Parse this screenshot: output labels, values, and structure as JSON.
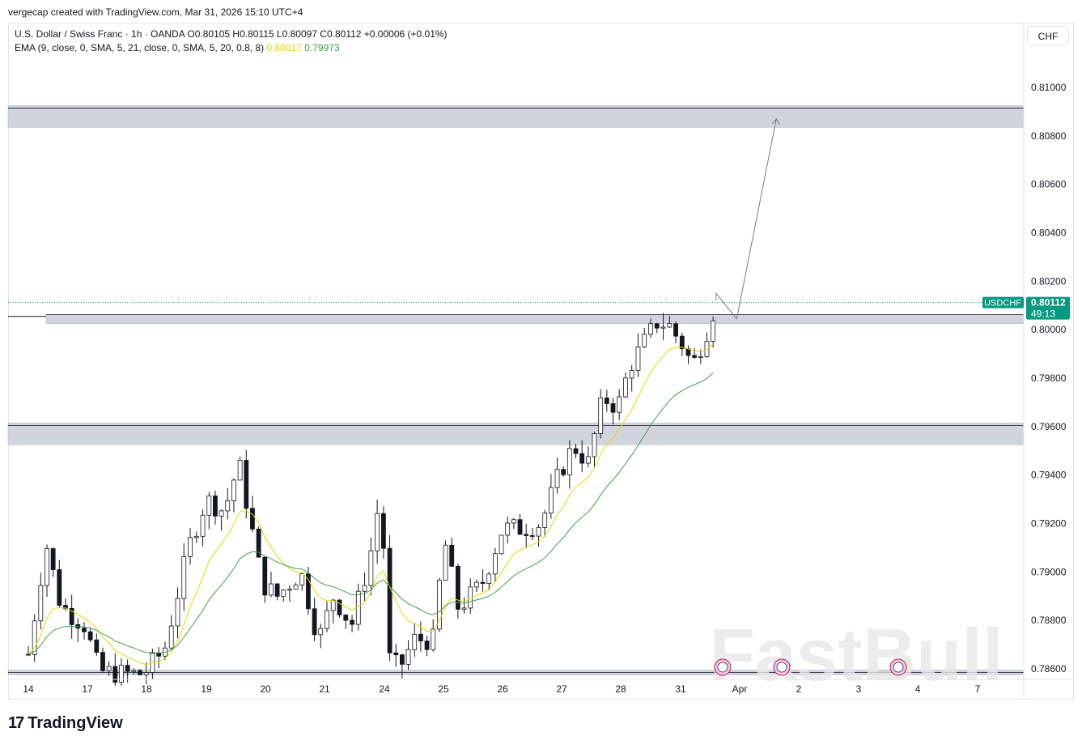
{
  "credit": "vergecap created with TradingView.com, Mar 31, 2026 15:10 UTC+4",
  "legend": {
    "symbol_line": "U.S. Dollar / Swiss Franc · 1h · OANDA  O0.80105  H0.80115  L0.80097  C0.80112  +0.00006 (+0.01%)",
    "ema_label": "EMA (9, close, 0, SMA, 5, 21, close, 0, SMA, 5, 20, 0.8, 8)",
    "ema_fast_value": "0.80017",
    "ema_slow_value": "0.79973"
  },
  "currency_button": "CHF",
  "price_tag": {
    "symbol": "USDCHF",
    "price": "0.80112",
    "countdown": "49:13",
    "color": "#089981"
  },
  "logo": {
    "mark": "17",
    "text": "TradingView"
  },
  "watermark": "FastBull",
  "chart_data": {
    "type": "candlestick",
    "symbol": "USDCHF",
    "timeframe": "1h",
    "ylim": [
      0.7855,
      0.8115
    ],
    "yticks": [
      "0.81000",
      "0.80800",
      "0.80600",
      "0.80400",
      "0.80200",
      "0.80000",
      "0.79800",
      "0.79600",
      "0.79400",
      "0.79200",
      "0.79000",
      "0.78800",
      "0.78600"
    ],
    "ytick_values": [
      0.81,
      0.808,
      0.806,
      0.804,
      0.802,
      0.8,
      0.798,
      0.796,
      0.794,
      0.792,
      0.79,
      0.788,
      0.786
    ],
    "xticks": [
      "14",
      "17",
      "18",
      "19",
      "20",
      "21",
      "24",
      "25",
      "26",
      "27",
      "28",
      "31",
      "Apr",
      "2",
      "3",
      "4",
      "7"
    ],
    "xtick_index": [
      0,
      1,
      2,
      3,
      4,
      5,
      6,
      7,
      8,
      9,
      10,
      11,
      12,
      13,
      14,
      15,
      16
    ],
    "last_price": 0.80112,
    "zones": [
      {
        "name": "resistance",
        "low": 0.80835,
        "high": 0.80925
      },
      {
        "name": "breakout",
        "low": 0.80025,
        "high": 0.80062
      },
      {
        "name": "support",
        "low": 0.79525,
        "high": 0.79615
      },
      {
        "name": "bottom",
        "low": 0.78575,
        "high": 0.78595
      }
    ],
    "price_path": [
      {
        "t": 0.0,
        "p": 0.7866
      },
      {
        "t": 0.3,
        "p": 0.7912
      },
      {
        "t": 0.55,
        "p": 0.7886
      },
      {
        "t": 0.95,
        "p": 0.7878
      },
      {
        "t": 1.2,
        "p": 0.7859
      },
      {
        "t": 1.55,
        "p": 0.7858
      },
      {
        "t": 1.95,
        "p": 0.7858
      },
      {
        "t": 2.3,
        "p": 0.7868
      },
      {
        "t": 2.7,
        "p": 0.791
      },
      {
        "t": 3.0,
        "p": 0.793
      },
      {
        "t": 3.3,
        "p": 0.7925
      },
      {
        "t": 3.55,
        "p": 0.7945
      },
      {
        "t": 3.75,
        "p": 0.792
      },
      {
        "t": 3.95,
        "p": 0.7895
      },
      {
        "t": 4.2,
        "p": 0.789
      },
      {
        "t": 4.6,
        "p": 0.79
      },
      {
        "t": 4.9,
        "p": 0.7872
      },
      {
        "t": 5.15,
        "p": 0.789
      },
      {
        "t": 5.45,
        "p": 0.7878
      },
      {
        "t": 5.75,
        "p": 0.7905
      },
      {
        "t": 5.95,
        "p": 0.7935
      },
      {
        "t": 6.05,
        "p": 0.7865
      },
      {
        "t": 6.25,
        "p": 0.786
      },
      {
        "t": 6.5,
        "p": 0.7872
      },
      {
        "t": 6.85,
        "p": 0.7872
      },
      {
        "t": 7.0,
        "p": 0.7915
      },
      {
        "t": 7.25,
        "p": 0.7885
      },
      {
        "t": 7.65,
        "p": 0.7895
      },
      {
        "t": 8.0,
        "p": 0.7918
      },
      {
        "t": 8.35,
        "p": 0.7918
      },
      {
        "t": 8.65,
        "p": 0.792
      },
      {
        "t": 8.95,
        "p": 0.794
      },
      {
        "t": 9.2,
        "p": 0.7952
      },
      {
        "t": 9.45,
        "p": 0.7945
      },
      {
        "t": 9.7,
        "p": 0.7972
      },
      {
        "t": 9.95,
        "p": 0.7968
      },
      {
        "t": 10.15,
        "p": 0.7985
      },
      {
        "t": 10.35,
        "p": 0.7993
      },
      {
        "t": 10.6,
        "p": 0.8003
      },
      {
        "t": 10.8,
        "p": 0.8002
      },
      {
        "t": 11.05,
        "p": 0.7993
      },
      {
        "t": 11.2,
        "p": 0.7985
      },
      {
        "t": 11.45,
        "p": 0.8
      },
      {
        "t": 11.6,
        "p": 0.8011
      }
    ],
    "ema_fast_end": 0.80017,
    "ema_slow_end": 0.79973,
    "projection": [
      {
        "t": 11.6,
        "p": 0.8015
      },
      {
        "t": 11.95,
        "p": 0.80045
      },
      {
        "t": 12.62,
        "p": 0.8087
      }
    ]
  }
}
